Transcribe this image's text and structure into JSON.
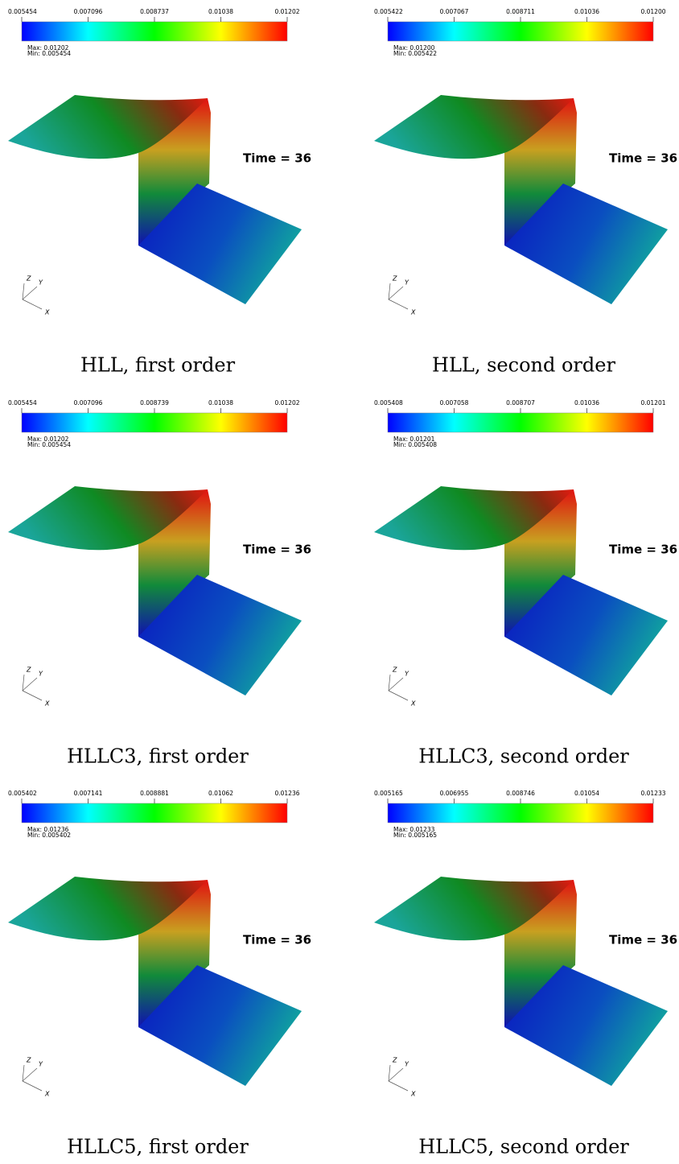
{
  "panels": [
    {
      "colorbar": {
        "ticks": [
          "0.005454",
          "0.007096",
          "0.008737",
          "0.01038",
          "0.01202"
        ],
        "max": "Max:  0.01202",
        "min": "Min:  0.005454"
      },
      "time": "Time = 36",
      "axes": {
        "z": "Z",
        "y": "Y",
        "x": "X"
      },
      "caption": "HLL, first order"
    },
    {
      "colorbar": {
        "ticks": [
          "0.005422",
          "0.007067",
          "0.008711",
          "0.01036",
          "0.01200"
        ],
        "max": "Max:  0.01200",
        "min": "Min:  0.005422"
      },
      "time": "Time = 36",
      "axes": {
        "z": "Z",
        "y": "Y",
        "x": "X"
      },
      "caption": "HLL, second order"
    },
    {
      "colorbar": {
        "ticks": [
          "0.005454",
          "0.007096",
          "0.008739",
          "0.01038",
          "0.01202"
        ],
        "max": "Max:  0.01202",
        "min": "Min:  0.005454"
      },
      "time": "Time = 36",
      "axes": {
        "z": "Z",
        "y": "Y",
        "x": "X"
      },
      "caption": "HLLC3, first order"
    },
    {
      "colorbar": {
        "ticks": [
          "0.005408",
          "0.007058",
          "0.008707",
          "0.01036",
          "0.01201"
        ],
        "max": "Max:  0.01201",
        "min": "Min:  0.005408"
      },
      "time": "Time = 36",
      "axes": {
        "z": "Z",
        "y": "Y",
        "x": "X"
      },
      "caption": "HLLC3, second order"
    },
    {
      "colorbar": {
        "ticks": [
          "0.005402",
          "0.007141",
          "0.008881",
          "0.01062",
          "0.01236"
        ],
        "max": "Max:  0.01236",
        "min": "Min:  0.005402"
      },
      "time": "Time = 36",
      "axes": {
        "z": "Z",
        "y": "Y",
        "x": "X"
      },
      "caption": "HLLC5, first order"
    },
    {
      "colorbar": {
        "ticks": [
          "0.005165",
          "0.006955",
          "0.008746",
          "0.01054",
          "0.01233"
        ],
        "max": "Max:  0.01233",
        "min": "Min:  0.005165"
      },
      "time": "Time = 36",
      "axes": {
        "z": "Z",
        "y": "Y",
        "x": "X"
      },
      "caption": "HLLC5, second order"
    }
  ]
}
